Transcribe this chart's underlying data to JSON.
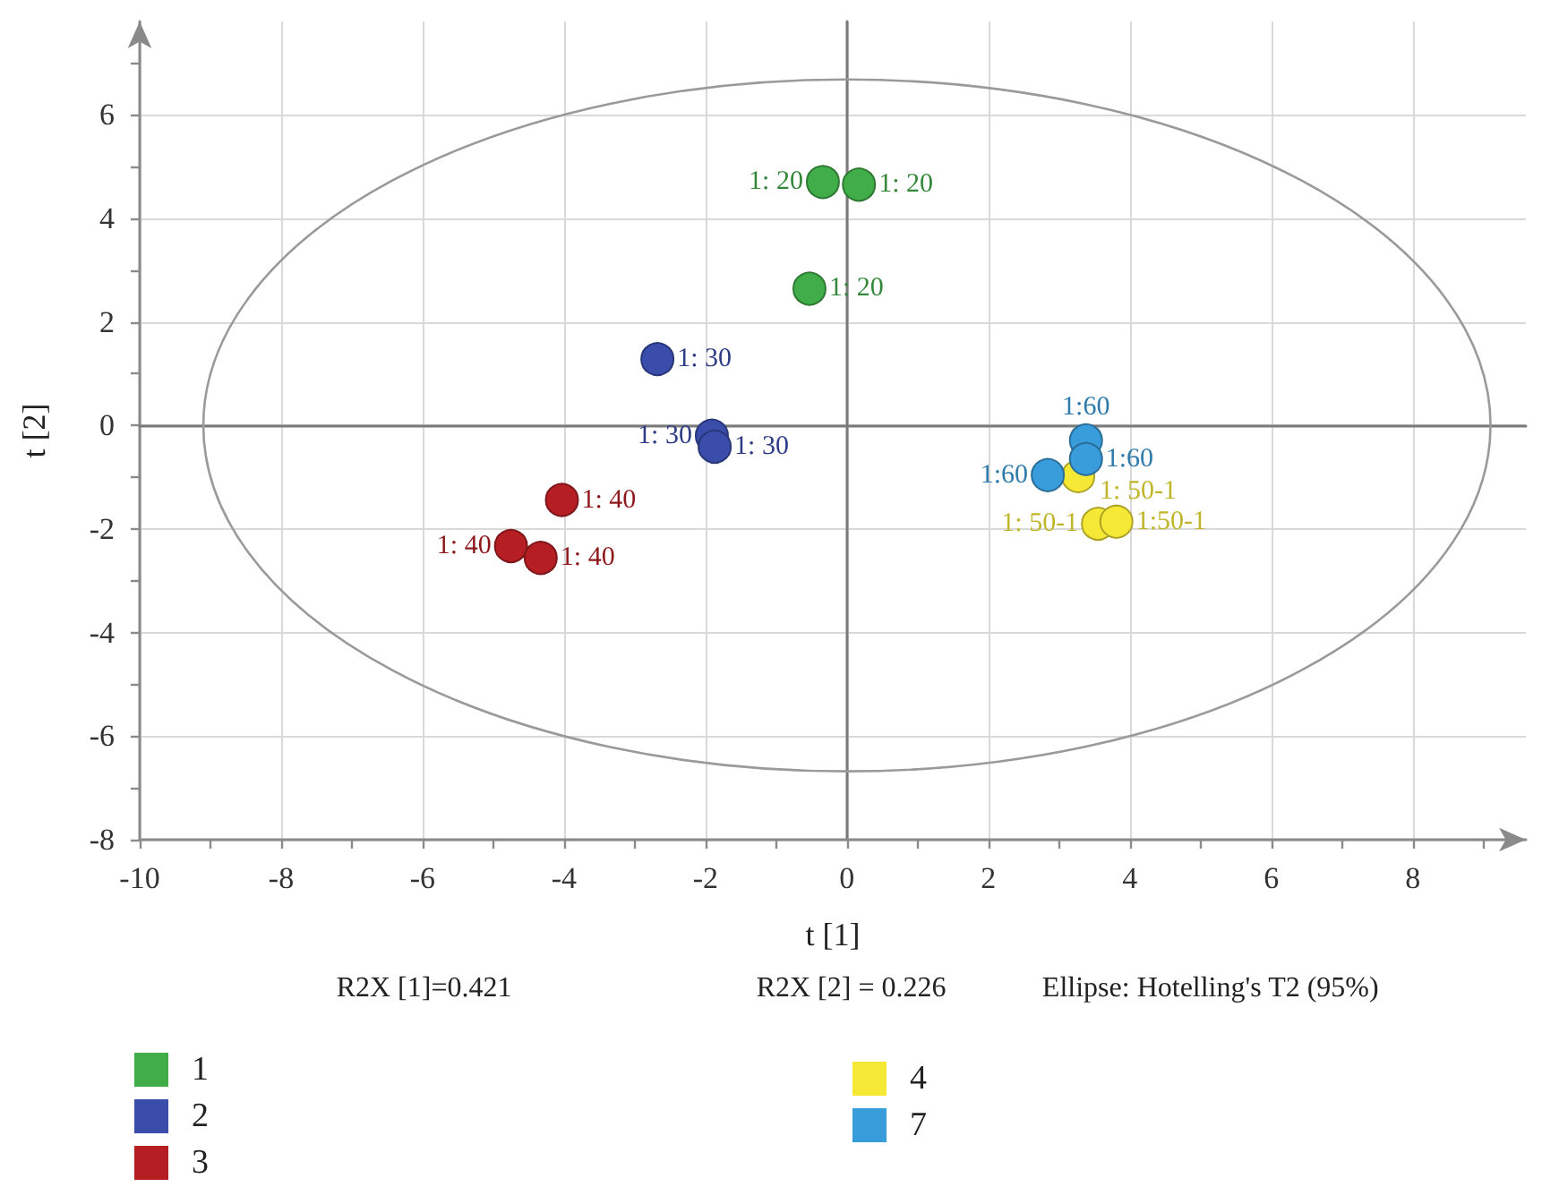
{
  "chart_data": {
    "type": "scatter",
    "xlabel": "t [1]",
    "ylabel": "t [2]",
    "xlim": [
      -10,
      9.6
    ],
    "ylim": [
      -8,
      7.8
    ],
    "xticks": [
      -10,
      {
        "value": -9,
        "label": null
      },
      -8,
      {
        "value": -7,
        "label": null
      },
      -6,
      {
        "value": -5,
        "label": null
      },
      -4,
      {
        "value": -3,
        "label": null
      },
      -2,
      {
        "value": -1,
        "label": null
      },
      0,
      {
        "value": 1,
        "label": null
      },
      2,
      {
        "value": 3,
        "label": null
      },
      4,
      {
        "value": 5,
        "label": null
      },
      6,
      {
        "value": 7,
        "label": null
      },
      8,
      {
        "value": 9,
        "label": null
      }
    ],
    "yticks": [
      -8,
      {
        "value": -7,
        "label": null
      },
      -6,
      {
        "value": -5,
        "label": null
      },
      -4,
      {
        "value": -3,
        "label": null
      },
      -2,
      {
        "value": -1,
        "label": null
      },
      0,
      {
        "value": 1,
        "label": null
      },
      2,
      {
        "value": 3,
        "label": null
      },
      4,
      {
        "value": 5,
        "label": null
      },
      6,
      {
        "value": 7,
        "label": null
      }
    ],
    "grid": true,
    "legend": "bottom",
    "marker": "circle",
    "series": [
      {
        "name": "1",
        "color": "#41ad49",
        "x": [
          -0.34,
          0.17,
          -0.53
        ],
        "values": [
          4.7,
          4.65,
          2.64
        ]
      },
      {
        "name": "2",
        "color": "#3a4dab",
        "x": [
          -2.68,
          -1.91,
          -1.87
        ],
        "values": [
          1.28,
          -0.2,
          -0.41
        ]
      },
      {
        "name": "3",
        "color": "#b51f24",
        "x": [
          -4.03,
          -4.75,
          -4.33
        ],
        "values": [
          -1.44,
          -2.33,
          -2.56
        ]
      },
      {
        "name": "4",
        "color": "#f6e936",
        "x": [
          3.27,
          3.55,
          3.81
        ],
        "values": [
          -0.98,
          -1.9,
          -1.86
        ]
      },
      {
        "name": "7",
        "color": "#3a9ddb",
        "x": [
          3.38,
          3.38,
          2.84
        ],
        "values": [
          -0.29,
          -0.65,
          -0.96
        ]
      }
    ],
    "annotations": [
      {
        "text": "1: 20",
        "x": -0.34,
        "y": 4.7
      },
      {
        "text": "1: 20",
        "x": 0.17,
        "y": 4.65
      },
      {
        "text": "1: 20",
        "x": -0.53,
        "y": 2.64
      },
      {
        "text": "1: 30",
        "x": -2.68,
        "y": 1.28
      },
      {
        "text": "1: 30",
        "x": -1.91,
        "y": -0.2
      },
      {
        "text": "1: 30",
        "x": -1.87,
        "y": -0.41
      },
      {
        "text": "1: 40",
        "x": -4.03,
        "y": -1.44
      },
      {
        "text": "1: 40",
        "x": -4.75,
        "y": -2.33
      },
      {
        "text": "1: 40",
        "x": -4.33,
        "y": -2.56
      },
      {
        "text": "1:60",
        "x": 3.38,
        "y": -0.29
      },
      {
        "text": "1:60",
        "x": 3.38,
        "y": -0.65
      },
      {
        "text": "1:60",
        "x": 2.84,
        "y": -0.96
      },
      {
        "text": "1: 50-1",
        "x": 3.27,
        "y": -0.98
      },
      {
        "text": "1: 50-1",
        "x": 3.55,
        "y": -1.9
      },
      {
        "text": "1:50-1",
        "x": 3.81,
        "y": -1.86
      },
      "R2X [1]=0.421",
      "R2X [2] = 0.226",
      "Ellipse: Hotelling's T2 (95%)"
    ]
  }
}
